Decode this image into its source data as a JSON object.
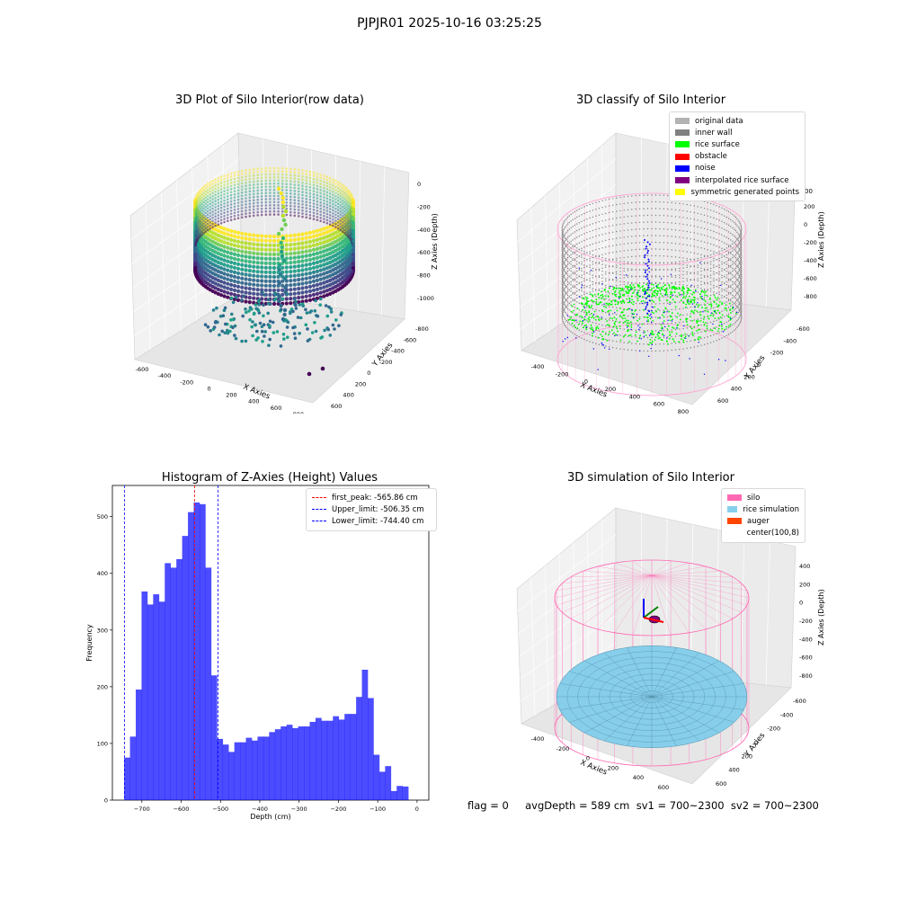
{
  "figure": {
    "suptitle": "PJPJR01 2025-10-16 03:25:25",
    "footer": "flag = 0     avgDepth = 589 cm  sv1 = 700~2300  sv2 = 700~2300"
  },
  "chart_data": [
    {
      "type": "scatter",
      "title": "3D Plot of Silo Interior(row data)",
      "xlabel": "X Axies",
      "ylabel": "Y Axies",
      "zlabel": "Z Axies (Depth)",
      "x_ticks": [
        -600,
        -400,
        -200,
        0,
        200,
        400,
        600,
        800
      ],
      "y_ticks": [
        -800,
        -600,
        -400,
        -200,
        0,
        200,
        400,
        600
      ],
      "z_ticks": [
        -1000,
        -800,
        -600,
        -400,
        -200,
        0
      ],
      "colormap": "viridis",
      "outlier_points": [
        {
          "x": 760,
          "y": -820,
          "z": -1100
        },
        {
          "x": 820,
          "y": -760,
          "z": -1080
        }
      ]
    },
    {
      "type": "scatter",
      "title": "3D classify of Silo Interior",
      "x_ticks": [
        -400,
        -200,
        0,
        200,
        400,
        600,
        800
      ],
      "y_ticks": [
        -600,
        -400,
        -200,
        0,
        200,
        400,
        600
      ],
      "z_ticks": [
        -800,
        -600,
        -400,
        -200,
        0,
        200
      ],
      "z_tick_partial": "00",
      "xlabel": "X Axies",
      "ylabel": "Y Axies",
      "zlabel": "Z Axies (Depth)",
      "legend": [
        {
          "label": "original data",
          "color": "#b3b3b3"
        },
        {
          "label": "inner wall",
          "color": "#808080"
        },
        {
          "label": "rice surface",
          "color": "#00ff00"
        },
        {
          "label": "obstacle",
          "color": "#ff0000"
        },
        {
          "label": "noise",
          "color": "#0000ff"
        },
        {
          "label": "interpolated rice surface",
          "color": "#800080"
        },
        {
          "label": "symmetric generated points",
          "color": "#ffff00"
        }
      ]
    },
    {
      "type": "bar",
      "title": "Histogram of Z-Axies (Height) Values",
      "xlabel": "Depth (cm)",
      "ylabel": "Frequency",
      "xlim": [
        -775,
        30
      ],
      "ylim": [
        0,
        555
      ],
      "x_ticks": [
        -700,
        -600,
        -500,
        -400,
        -300,
        -200,
        -100,
        0
      ],
      "y_ticks": [
        0,
        100,
        200,
        300,
        400,
        500
      ],
      "bin_start": -745,
      "bin_width": 14.75,
      "values": [
        75,
        112,
        195,
        368,
        345,
        363,
        350,
        418,
        410,
        425,
        466,
        508,
        525,
        522,
        410,
        220,
        108,
        98,
        85,
        102,
        102,
        110,
        105,
        112,
        112,
        120,
        125,
        130,
        133,
        127,
        130,
        130,
        138,
        145,
        140,
        140,
        148,
        142,
        152,
        152,
        182,
        230,
        180,
        80,
        50,
        60,
        16,
        25,
        24
      ],
      "bar_color": "#0000ff",
      "legend": [
        {
          "label": "first_peak: -565.86 cm",
          "value": -565.86,
          "color": "#ff0000"
        },
        {
          "label": "Upper_limit: -506.35 cm",
          "value": -506.35,
          "color": "#0000ff"
        },
        {
          "label": "Lower_limit: -744.40 cm",
          "value": -744.4,
          "color": "#0000ff"
        }
      ]
    },
    {
      "type": "area",
      "title": "3D simulation of Silo Interior",
      "x_ticks": [
        -400,
        -200,
        0,
        200,
        400,
        600
      ],
      "y_ticks": [
        -600,
        -400,
        -200,
        0,
        200,
        400,
        600
      ],
      "z_ticks": [
        -800,
        -600,
        -400,
        -200,
        0,
        200,
        400
      ],
      "xlabel": "X Axies",
      "ylabel": "Y Axies",
      "zlabel": "Z Axies (Depth)",
      "legend": [
        {
          "label": "silo",
          "color": "#ff69b4"
        },
        {
          "label": "rice simulation",
          "color": "#87ceeb"
        },
        {
          "label": "auger",
          "color": "#ff4500"
        },
        {
          "label": "center(100,8)",
          "color": "#ffffff"
        }
      ]
    }
  ]
}
